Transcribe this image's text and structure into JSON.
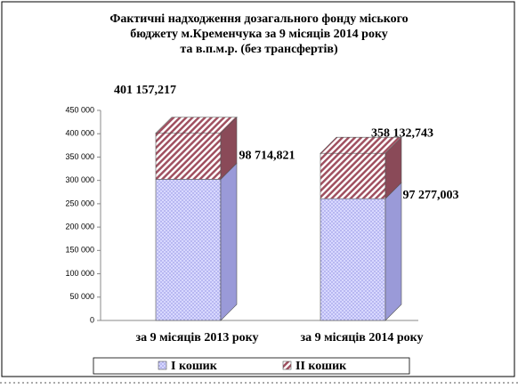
{
  "chart_data": {
    "type": "bar3d-stacked",
    "title": [
      "Фактичні надходження  дозагального фонду міського",
      "бюджету м.Кременчука за 9 місяців 2014 року",
      "та в.п.м.р.  (без трансфертів)"
    ],
    "categories": [
      "за 9 місяців 2013 року",
      "за 9 місяців  2014 року"
    ],
    "series": [
      {
        "name": "І кошик",
        "color": "#ccccff",
        "values": [
          302442.396,
          260855.74
        ]
      },
      {
        "name": "ІІ кошик",
        "color": "#c99aa6",
        "values": [
          98714.821,
          97277.003
        ],
        "value_labels": [
          "98 714,821",
          "97 277,003"
        ]
      }
    ],
    "totals": [
      401157.217,
      358132.743
    ],
    "total_labels": [
      "401 157,217",
      "358 132,743"
    ],
    "ylim": [
      0,
      450000
    ],
    "yticks": [
      0,
      {
        "value": 50000,
        "label": "50 000"
      },
      {
        "value": 100000,
        "label": "100 000"
      },
      {
        "value": 150000,
        "label": "150 000"
      },
      {
        "value": 200000,
        "label": "200 000"
      },
      {
        "value": 250000,
        "label": "250 000"
      },
      {
        "value": 300000,
        "label": "300 000"
      },
      {
        "value": 350000,
        "label": "350 000"
      },
      {
        "value": 400000,
        "label": "400 000"
      },
      {
        "value": 450000,
        "label": "450 000"
      }
    ],
    "legend": "bottom"
  }
}
